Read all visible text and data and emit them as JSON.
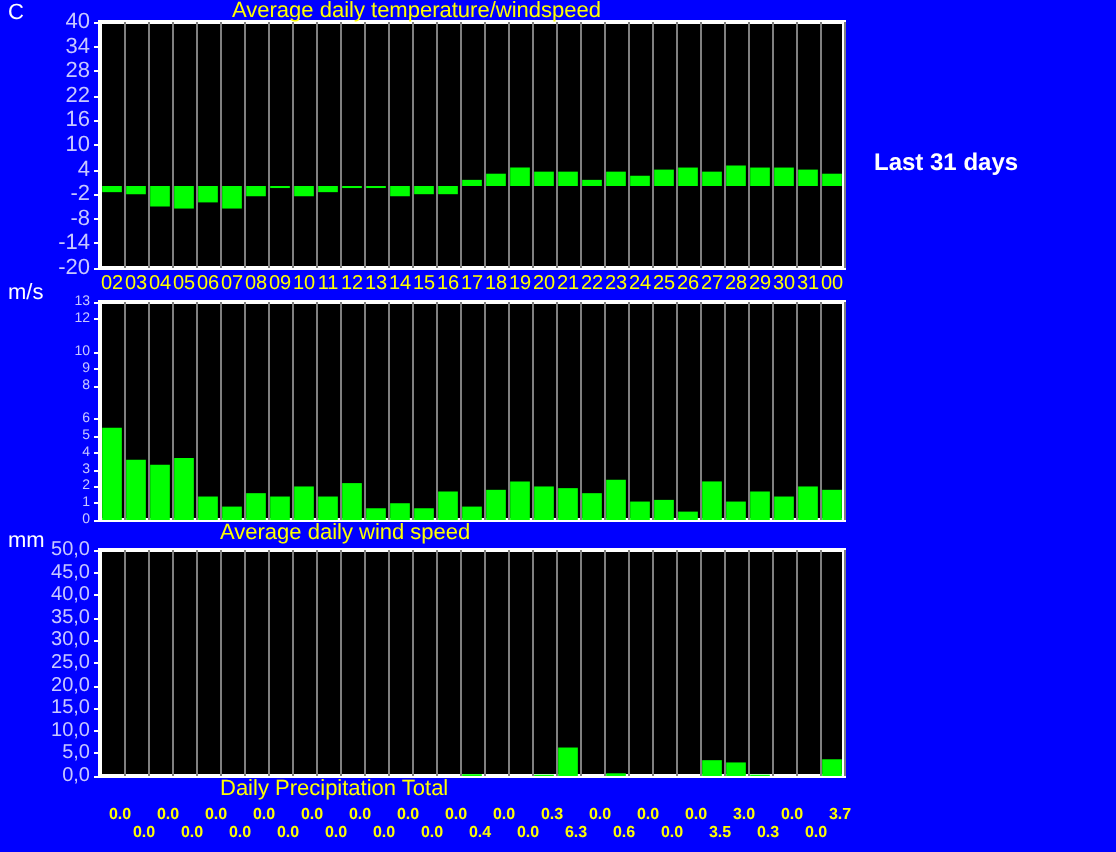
{
  "chart_data": [
    {
      "type": "bar",
      "title": "Average daily temperature/windspeed",
      "ylabel": "C",
      "annotations": [
        "Last 31 days"
      ],
      "categories": [
        "02",
        "03",
        "04",
        "05",
        "06",
        "07",
        "08",
        "09",
        "10",
        "11",
        "12",
        "13",
        "14",
        "15",
        "16",
        "17",
        "18",
        "19",
        "20",
        "21",
        "22",
        "23",
        "24",
        "25",
        "26",
        "27",
        "28",
        "29",
        "30",
        "31",
        "00"
      ],
      "series": [
        {
          "color": "#00ff00",
          "values": [
            -1.5,
            -2,
            -5,
            -5.5,
            -4,
            -5.5,
            -2.5,
            -0.5,
            -2.5,
            -1.5,
            -0.5,
            -0.5,
            -2.5,
            -2,
            -2,
            1.5,
            3,
            4.5,
            3.5,
            3.5,
            1.5,
            3.5,
            2.5,
            4,
            4.5,
            3.5,
            5,
            4.5,
            4.5,
            4,
            3
          ]
        }
      ],
      "ylim": [
        -20,
        40
      ],
      "yticks": [
        -20,
        -14,
        -8,
        -2,
        4,
        10,
        16,
        22,
        28,
        34,
        40
      ],
      "grid": "x"
    },
    {
      "type": "bar",
      "xlabel": "Average daily wind speed",
      "ylabel": "m/s",
      "tick_labels": "y",
      "categories": [
        "02",
        "03",
        "04",
        "05",
        "06",
        "07",
        "08",
        "09",
        "10",
        "11",
        "12",
        "13",
        "14",
        "15",
        "16",
        "17",
        "18",
        "19",
        "20",
        "21",
        "22",
        "23",
        "24",
        "25",
        "26",
        "27",
        "28",
        "29",
        "30",
        "31",
        "00"
      ],
      "series": [
        {
          "color": "#00ff00",
          "values": [
            5.5,
            3.6,
            3.3,
            3.7,
            1.4,
            0.8,
            1.6,
            1.4,
            2,
            1.4,
            2.2,
            0.7,
            1,
            0.7,
            1.7,
            0.8,
            1.8,
            2.3,
            2,
            1.9,
            1.6,
            2.4,
            1.1,
            1.2,
            0.5,
            2.3,
            1.1,
            1.7,
            1.4,
            2,
            1.8
          ]
        }
      ],
      "ylim": [
        0,
        13
      ],
      "yticks": [
        0,
        1,
        2,
        3,
        4,
        5,
        6,
        8,
        9,
        10,
        12,
        13
      ],
      "grid": "x"
    },
    {
      "type": "bar",
      "xlabel": "Daily Precipitation Total",
      "ylabel": "mm",
      "tick_labels": "y",
      "categories": [
        "02",
        "03",
        "04",
        "05",
        "06",
        "07",
        "08",
        "09",
        "10",
        "11",
        "12",
        "13",
        "14",
        "15",
        "16",
        "17",
        "18",
        "19",
        "20",
        "21",
        "22",
        "23",
        "24",
        "25",
        "26",
        "27",
        "28",
        "29",
        "30",
        "31",
        "00"
      ],
      "series": [
        {
          "color": "#00ff00",
          "values": [
            0,
            0,
            0,
            0,
            0,
            0,
            0,
            0,
            0,
            0,
            0,
            0,
            0,
            0,
            0,
            0.4,
            0,
            0,
            0.3,
            6.3,
            0,
            0.6,
            0,
            0,
            0,
            3.5,
            3,
            0.3,
            0,
            0,
            3.7
          ],
          "value_labels": [
            "0.0",
            "0.0",
            "0.0",
            "0.0",
            "0.0",
            "0.0",
            "0.0",
            "0.0",
            "0.0",
            "0.0",
            "0.0",
            "0.0",
            "0.0",
            "0.0",
            "0.0",
            "0.4",
            "0.0",
            "0.0",
            "0.3",
            "6.3",
            "0.0",
            "0.6",
            "0.0",
            "0.0",
            "0.0",
            "3.5",
            "3.0",
            "0.3",
            "0.0",
            "0.0",
            "3.7"
          ]
        }
      ],
      "ylim": [
        0,
        50
      ],
      "yticks": [
        {
          "value": 0,
          "label": "0,0"
        },
        {
          "value": 5,
          "label": "5,0"
        },
        {
          "value": 10,
          "label": "10,0"
        },
        {
          "value": 15,
          "label": "15,0"
        },
        {
          "value": 20,
          "label": "20,0"
        },
        {
          "value": 25,
          "label": "25,0"
        },
        {
          "value": 30,
          "label": "30,0"
        },
        {
          "value": 35,
          "label": "35,0"
        },
        {
          "value": 40,
          "label": "40,0"
        },
        {
          "value": 45,
          "label": "45,0"
        },
        {
          "value": 50,
          "label": "50,0"
        }
      ],
      "grid": "x"
    }
  ]
}
